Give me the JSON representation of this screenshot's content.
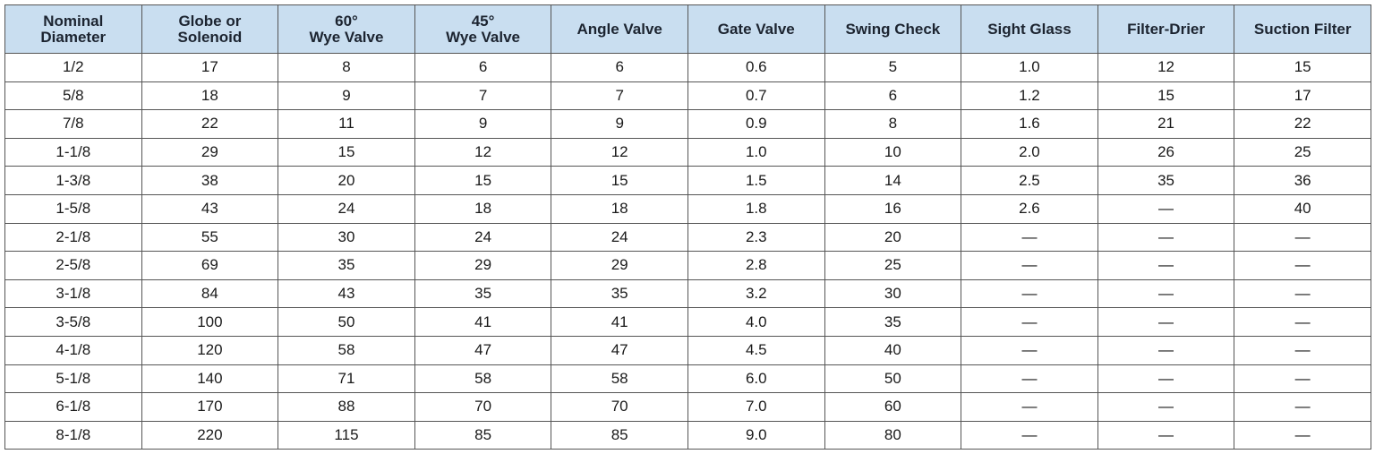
{
  "table": {
    "header": [
      [
        "Nominal",
        "Diameter"
      ],
      [
        "Globe or",
        "Solenoid"
      ],
      [
        "60°",
        "Wye Valve"
      ],
      [
        "45°",
        "Wye Valve"
      ],
      [
        "Angle Valve"
      ],
      [
        "Gate Valve"
      ],
      [
        "Swing Check"
      ],
      [
        "Sight Glass"
      ],
      [
        "Filter-Drier"
      ],
      [
        "Suction Filter"
      ]
    ],
    "rows": [
      [
        "1/2",
        "17",
        "8",
        "6",
        "6",
        "0.6",
        "5",
        "1.0",
        "12",
        "15"
      ],
      [
        "5/8",
        "18",
        "9",
        "7",
        "7",
        "0.7",
        "6",
        "1.2",
        "15",
        "17"
      ],
      [
        "7/8",
        "22",
        "11",
        "9",
        "9",
        "0.9",
        "8",
        "1.6",
        "21",
        "22"
      ],
      [
        "1-1/8",
        "29",
        "15",
        "12",
        "12",
        "1.0",
        "10",
        "2.0",
        "26",
        "25"
      ],
      [
        "1-3/8",
        "38",
        "20",
        "15",
        "15",
        "1.5",
        "14",
        "2.5",
        "35",
        "36"
      ],
      [
        "1-5/8",
        "43",
        "24",
        "18",
        "18",
        "1.8",
        "16",
        "2.6",
        "—",
        "40"
      ],
      [
        "2-1/8",
        "55",
        "30",
        "24",
        "24",
        "2.3",
        "20",
        "—",
        "—",
        "—"
      ],
      [
        "2-5/8",
        "69",
        "35",
        "29",
        "29",
        "2.8",
        "25",
        "—",
        "—",
        "—"
      ],
      [
        "3-1/8",
        "84",
        "43",
        "35",
        "35",
        "3.2",
        "30",
        "—",
        "—",
        "—"
      ],
      [
        "3-5/8",
        "100",
        "50",
        "41",
        "41",
        "4.0",
        "35",
        "—",
        "—",
        "—"
      ],
      [
        "4-1/8",
        "120",
        "58",
        "47",
        "47",
        "4.5",
        "40",
        "—",
        "—",
        "—"
      ],
      [
        "5-1/8",
        "140",
        "71",
        "58",
        "58",
        "6.0",
        "50",
        "—",
        "—",
        "—"
      ],
      [
        "6-1/8",
        "170",
        "88",
        "70",
        "70",
        "7.0",
        "60",
        "—",
        "—",
        "—"
      ],
      [
        "8-1/8",
        "220",
        "115",
        "85",
        "85",
        "9.0",
        "80",
        "—",
        "—",
        "—"
      ]
    ]
  }
}
